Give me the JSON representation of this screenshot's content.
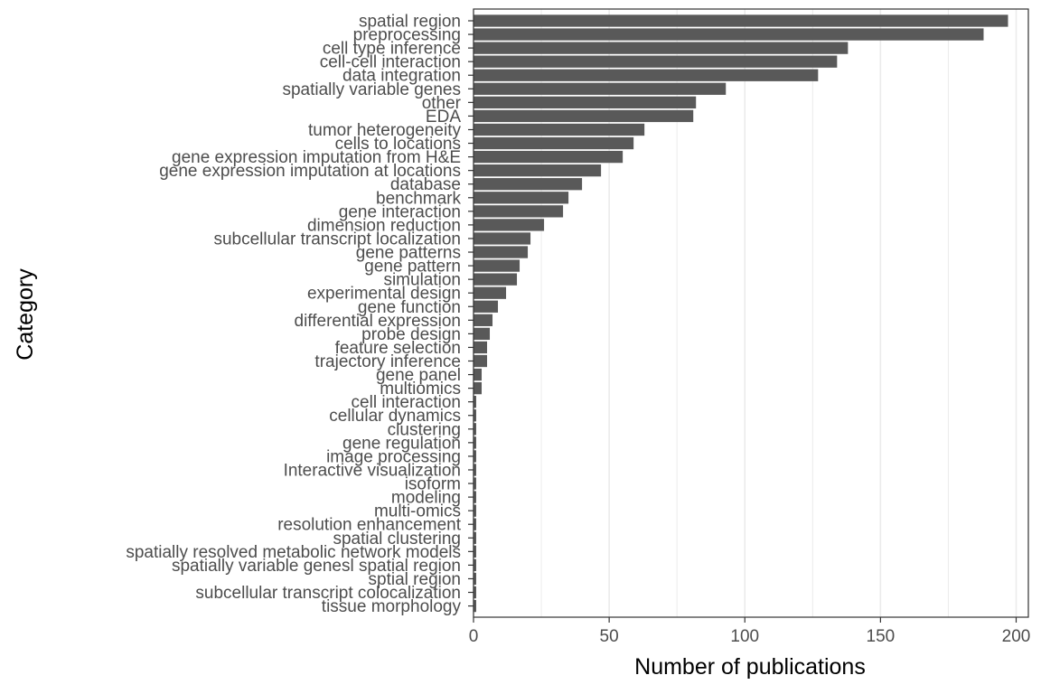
{
  "chart_data": {
    "type": "bar",
    "orientation": "horizontal",
    "xlabel": "Number of publications",
    "ylabel": "Category",
    "xlim": [
      0,
      205
    ],
    "xticks": [
      0,
      50,
      100,
      150,
      200
    ],
    "grid": true,
    "colors": {
      "bar": "#595959",
      "grid": "#ebebeb",
      "panel_border": "#333333",
      "text": "#4d4d4d"
    },
    "categories": [
      "spatial region",
      "preprocessing",
      "cell type inference",
      "cell-cell interaction",
      "data integration",
      "spatially variable genes",
      "other",
      "EDA",
      "tumor heterogeneity",
      "cells to locations",
      "gene expression imputation from H&E",
      "gene expression imputation at locations",
      "database",
      "benchmark",
      "gene interaction",
      "dimension reduction",
      "subcellular transcript localization",
      "gene patterns",
      "gene pattern",
      "simulation",
      "experimental design",
      "gene function",
      "differential expression",
      "probe design",
      "feature selection",
      "trajectory inference",
      "gene panel",
      "multiomics",
      "cell interaction",
      "cellular dynamics",
      "clustering",
      "gene regulation",
      "image processing",
      "Interactive visualization",
      "isoform",
      "modeling",
      "multi-omics",
      "resolution enhancement",
      "spatial clustering",
      "spatially resolved metabolic network models",
      "spatially variable genesl spatial region",
      "sptial region",
      "subcellular transcript colocalization",
      "tissue morphology"
    ],
    "values": [
      197,
      188,
      138,
      134,
      127,
      93,
      82,
      81,
      63,
      59,
      55,
      47,
      40,
      35,
      33,
      26,
      21,
      20,
      17,
      16,
      12,
      9,
      7,
      6,
      5,
      5,
      3,
      3,
      1,
      1,
      1,
      1,
      1,
      1,
      1,
      1,
      1,
      1,
      1,
      1,
      1,
      1,
      1,
      1
    ]
  }
}
